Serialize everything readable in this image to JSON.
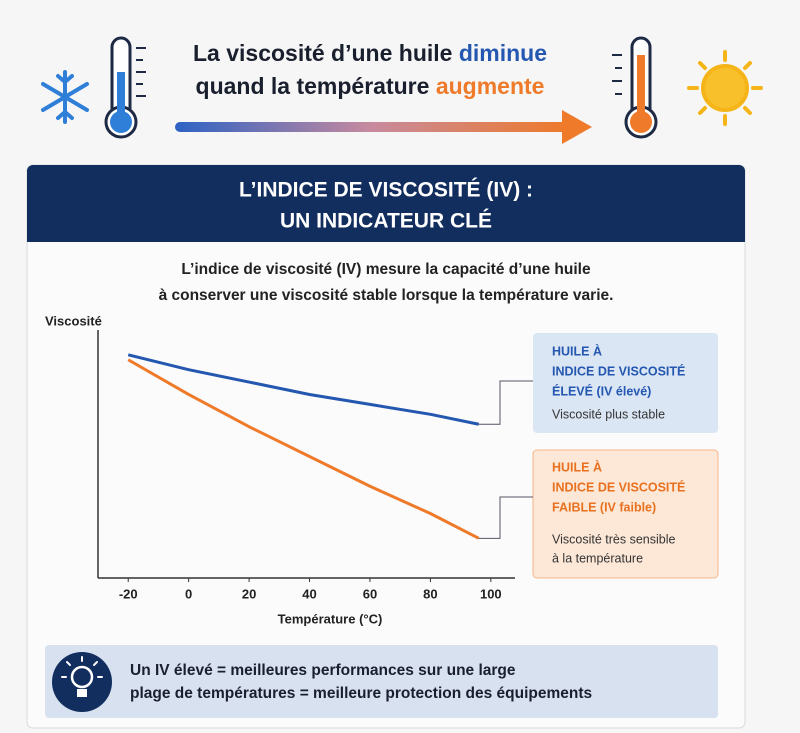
{
  "header": {
    "title_line1": {
      "text": "La viscosité d’une huile ",
      "highlight": "diminue"
    },
    "title_line2": {
      "text": "quand la température ",
      "highlight": "augmente"
    }
  },
  "panel": {
    "title_lines": [
      "L’INDICE DE VISCOSITÉ (IV) :",
      "UN INDICATEUR CLÉ"
    ],
    "description_lines": [
      "L’indice de viscosité (IV) mesure la capacité d’une huile",
      "à conserver une viscosité stable lorsque la température varie."
    ]
  },
  "chart_data": {
    "type": "line",
    "y_label": "Viscosité",
    "x_label": "Température (°C)",
    "x": [
      -20,
      0,
      20,
      40,
      60,
      80,
      96
    ],
    "series": [
      {
        "color": "#2457b0",
        "values": [
          90,
          84,
          79,
          74,
          70,
          66,
          62
        ]
      },
      {
        "color": "#ee7a2a",
        "values": [
          88,
          74,
          61,
          49,
          37,
          26,
          16
        ]
      }
    ],
    "xlim": [
      -30,
      108
    ],
    "xticks": [
      -20,
      0,
      20,
      40,
      60,
      80,
      100
    ],
    "ylim": [
      0,
      100
    ]
  },
  "callouts": [
    {
      "heading_lines": [
        "HUILE À",
        "INDICE DE VISCOSITÉ",
        "ÉLEVÉ (IV élevé)"
      ],
      "text_lines": [
        "Viscosité plus stable"
      ]
    },
    {
      "heading_lines": [
        "HUILE À",
        "INDICE DE VISCOSITÉ",
        "FAIBLE (IV faible)"
      ],
      "text_lines": [
        "Viscosité très sensible",
        "à la température"
      ]
    }
  ],
  "footer": {
    "lines": [
      "Un IV élevé = meilleures performances sur une large",
      "plage de températures = meilleure protection des équipements"
    ]
  }
}
